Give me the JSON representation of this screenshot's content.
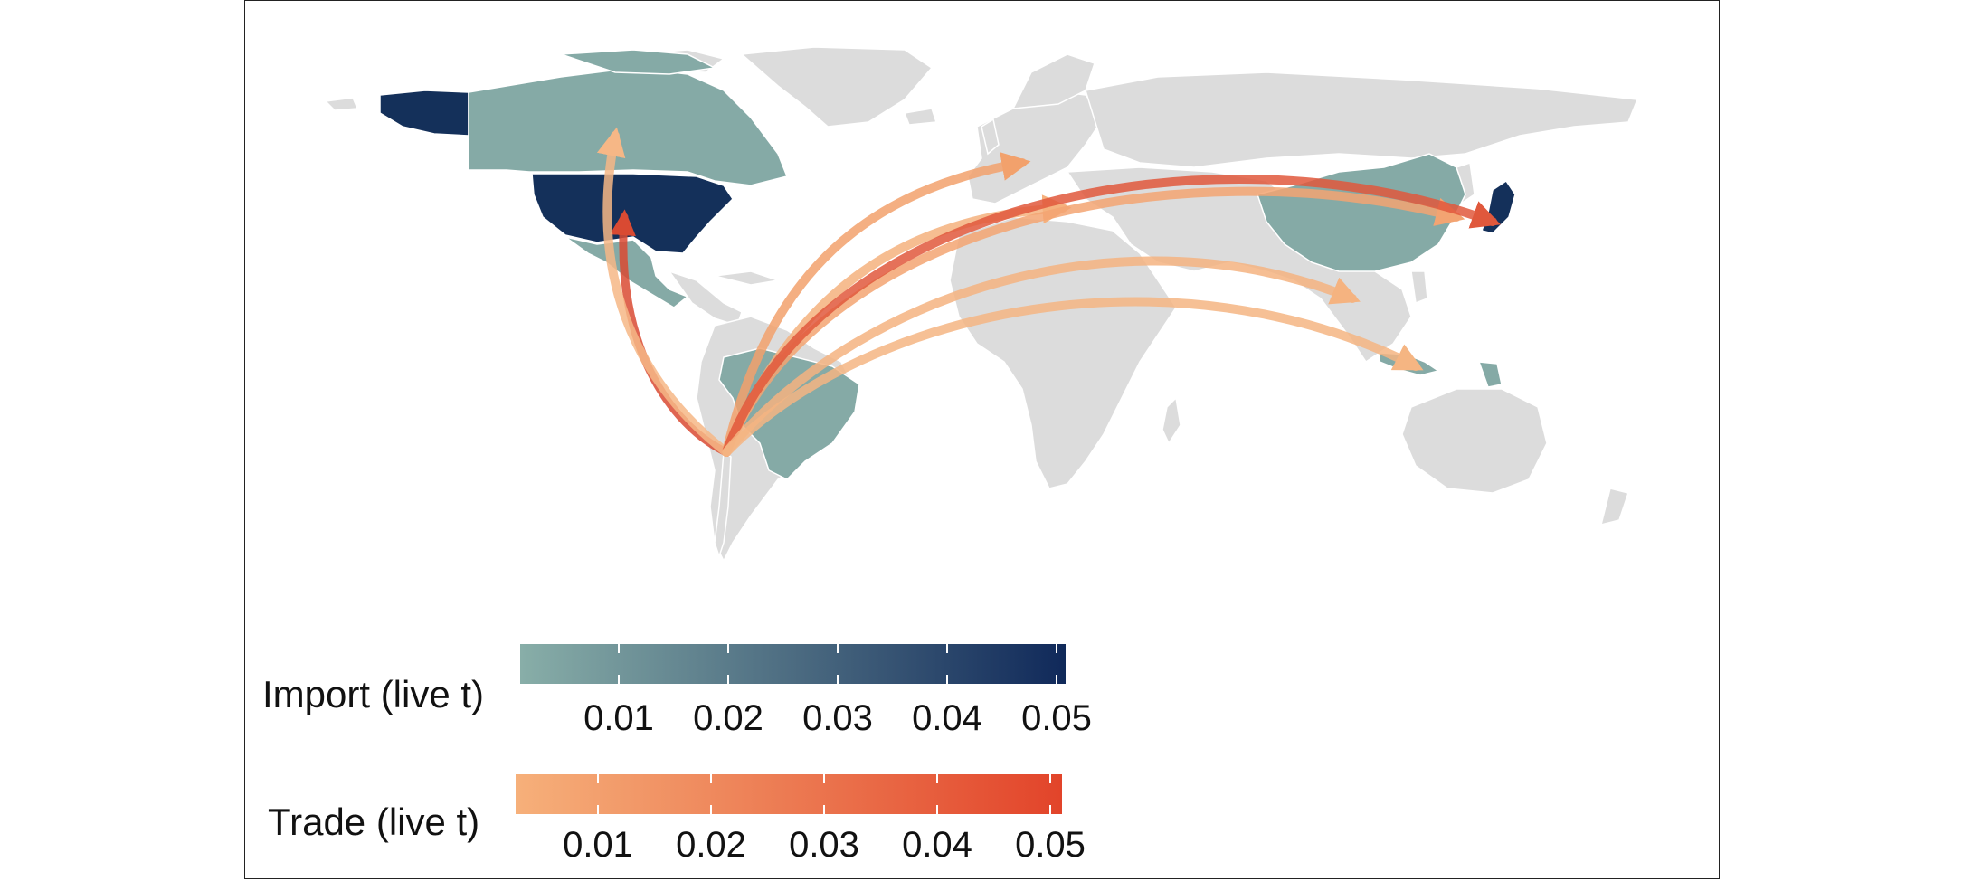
{
  "map": {
    "type": "flow-map",
    "origin": "Chile",
    "importers": [
      {
        "country": "United States",
        "color": "#14305a"
      },
      {
        "country": "Canada",
        "color": "#85aaa6"
      },
      {
        "country": "Mexico",
        "color": "#85aaa6"
      },
      {
        "country": "Brazil",
        "color": "#85aaa6"
      },
      {
        "country": "China",
        "color": "#85aaa6"
      },
      {
        "country": "Japan",
        "color": "#14305a"
      },
      {
        "country": "Indonesia",
        "color": "#85aaa6"
      },
      {
        "country": "Papua New Guinea",
        "color": "#85aaa6"
      }
    ],
    "flows": [
      {
        "to": "United States",
        "color": "#d94a32"
      },
      {
        "to": "Canada",
        "color": "#f6b786"
      },
      {
        "to": "Netherlands",
        "color": "#f2a16c"
      },
      {
        "to": "Italy",
        "color": "#f5b17e"
      },
      {
        "to": "China",
        "color": "#f3a472"
      },
      {
        "to": "Japan",
        "color": "#e0583c"
      },
      {
        "to": "Vietnam",
        "color": "#f5b380"
      },
      {
        "to": "Indonesia",
        "color": "#f5b582"
      }
    ],
    "land_color": "#dcdcdc",
    "border_color": "#ffffff"
  },
  "legend_import": {
    "title": "Import (live t)",
    "ticks": [
      "0.01",
      "0.02",
      "0.03",
      "0.04",
      "0.05"
    ],
    "color_low": "#88aea8",
    "color_high": "#10295a"
  },
  "legend_trade": {
    "title": "Trade (live t)",
    "ticks": [
      "0.01",
      "0.02",
      "0.03",
      "0.04",
      "0.05"
    ],
    "color_low": "#f6b07a",
    "color_high": "#e2442a"
  }
}
